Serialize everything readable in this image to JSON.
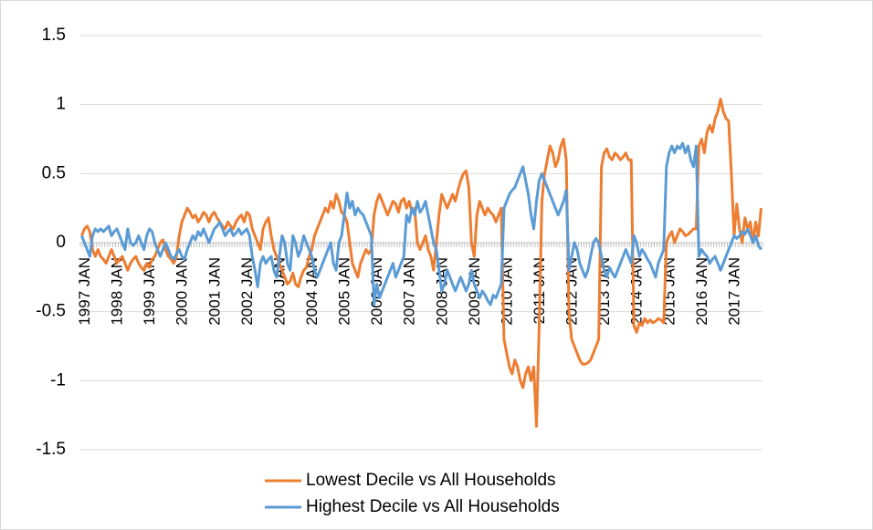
{
  "chart_data": {
    "type": "line",
    "categories": [
      "1997 JAN",
      null,
      null,
      null,
      null,
      null,
      null,
      null,
      null,
      null,
      null,
      null,
      "1998 JAN",
      null,
      null,
      null,
      null,
      null,
      null,
      null,
      null,
      null,
      null,
      null,
      "1999 JAN",
      null,
      null,
      null,
      null,
      null,
      null,
      null,
      null,
      null,
      null,
      null,
      "2000 JAN",
      null,
      null,
      null,
      null,
      null,
      null,
      null,
      null,
      null,
      null,
      null,
      "2001 JAN",
      null,
      null,
      null,
      null,
      null,
      null,
      null,
      null,
      null,
      null,
      null,
      "2002 JAN",
      null,
      null,
      null,
      null,
      null,
      null,
      null,
      null,
      null,
      null,
      null,
      "2003 JAN",
      null,
      null,
      null,
      null,
      null,
      null,
      null,
      null,
      null,
      null,
      null,
      "2004 JAN",
      null,
      null,
      null,
      null,
      null,
      null,
      null,
      null,
      null,
      null,
      null,
      "2005 JAN",
      null,
      null,
      null,
      null,
      null,
      null,
      null,
      null,
      null,
      null,
      null,
      "2006 JAN",
      null,
      null,
      null,
      null,
      null,
      null,
      null,
      null,
      null,
      null,
      null,
      "2007 JAN",
      null,
      null,
      null,
      null,
      null,
      null,
      null,
      null,
      null,
      null,
      null,
      "2008 JAN",
      null,
      null,
      null,
      null,
      null,
      null,
      null,
      null,
      null,
      null,
      null,
      "2009 JAN",
      null,
      null,
      null,
      null,
      null,
      null,
      null,
      null,
      null,
      null,
      null,
      "2010 JAN",
      null,
      null,
      null,
      null,
      null,
      null,
      null,
      null,
      null,
      null,
      null,
      "2011 JAN",
      null,
      null,
      null,
      null,
      null,
      null,
      null,
      null,
      null,
      null,
      null,
      "2012 JAN",
      null,
      null,
      null,
      null,
      null,
      null,
      null,
      null,
      null,
      null,
      null,
      "2013 JAN",
      null,
      null,
      null,
      null,
      null,
      null,
      null,
      null,
      null,
      null,
      null,
      "2014 JAN",
      null,
      null,
      null,
      null,
      null,
      null,
      null,
      null,
      null,
      null,
      null,
      "2015 JAN",
      null,
      null,
      null,
      null,
      null,
      null,
      null,
      null,
      null,
      null,
      null,
      "2016 JAN",
      null,
      null,
      null,
      null,
      null,
      null,
      null,
      null,
      null,
      null,
      null,
      "2017 JAN",
      null,
      null,
      null,
      null,
      null,
      null,
      null,
      null,
      null,
      null,
      null
    ],
    "series": [
      {
        "name": "Lowest Decile vs All Households",
        "color": "#ed7d31",
        "values": [
          0.05,
          0.1,
          0.12,
          0.08,
          -0.05,
          -0.1,
          -0.05,
          -0.1,
          -0.12,
          -0.15,
          -0.1,
          -0.05,
          -0.1,
          -0.15,
          -0.12,
          -0.1,
          -0.15,
          -0.2,
          -0.15,
          -0.12,
          -0.1,
          -0.15,
          -0.18,
          -0.2,
          -0.15,
          -0.18,
          -0.12,
          -0.1,
          -0.05,
          0,
          0.02,
          -0.05,
          -0.1,
          -0.12,
          -0.15,
          -0.1,
          0.05,
          0.15,
          0.2,
          0.25,
          0.22,
          0.18,
          0.2,
          0.15,
          0.18,
          0.22,
          0.2,
          0.15,
          0.2,
          0.22,
          0.18,
          0.15,
          0.12,
          0.1,
          0.15,
          0.12,
          0.1,
          0.15,
          0.18,
          0.2,
          0.15,
          0.22,
          0.2,
          0.1,
          0.05,
          0,
          -0.05,
          0.1,
          0.15,
          0.18,
          0.05,
          -0.05,
          -0.1,
          -0.15,
          -0.2,
          -0.25,
          -0.3,
          -0.28,
          -0.22,
          -0.3,
          -0.32,
          -0.25,
          -0.2,
          -0.18,
          -0.1,
          -0.05,
          0.05,
          0.1,
          0.15,
          0.2,
          0.25,
          0.22,
          0.3,
          0.25,
          0.35,
          0.3,
          0.22,
          0.2,
          0.15,
          0,
          -0.15,
          -0.2,
          -0.25,
          -0.15,
          -0.1,
          -0.05,
          -0.08,
          -0.05,
          0.2,
          0.3,
          0.35,
          0.3,
          0.25,
          0.2,
          0.25,
          0.3,
          0.28,
          0.22,
          0.3,
          0.32,
          0.25,
          0.3,
          0.22,
          0.25,
          0,
          -0.05,
          0,
          0.05,
          -0.05,
          -0.1,
          -0.2,
          0,
          0.2,
          0.35,
          0.3,
          0.25,
          0.3,
          0.35,
          0.3,
          0.38,
          0.45,
          0.5,
          0.52,
          0.4,
          0,
          -0.1,
          0.2,
          0.3,
          0.25,
          0.2,
          0.25,
          0.22,
          0.2,
          0.15,
          0.2,
          0.25,
          -0.7,
          -0.8,
          -0.9,
          -0.95,
          -0.85,
          -0.9,
          -1,
          -1.05,
          -0.95,
          -0.9,
          -1,
          -0.9,
          -1.33,
          -0.6,
          0.3,
          0.5,
          0.6,
          0.7,
          0.65,
          0.55,
          0.6,
          0.7,
          0.75,
          0.6,
          -0.5,
          -0.7,
          -0.75,
          -0.8,
          -0.85,
          -0.88,
          -0.88,
          -0.87,
          -0.85,
          -0.8,
          -0.75,
          -0.7,
          0.55,
          0.65,
          0.68,
          0.62,
          0.6,
          0.65,
          0.63,
          0.6,
          0.62,
          0.65,
          0.6,
          0.6,
          -0.6,
          -0.65,
          -0.58,
          -0.6,
          -0.55,
          -0.58,
          -0.56,
          -0.58,
          -0.57,
          -0.55,
          -0.56,
          -0.58,
          0,
          0.05,
          0.08,
          0,
          0.05,
          0.1,
          0.08,
          0.05,
          0.06,
          0.08,
          0.1,
          0.1,
          0.7,
          0.75,
          0.65,
          0.8,
          0.85,
          0.8,
          0.9,
          0.95,
          1.04,
          0.95,
          0.9,
          0.88,
          0.5,
          0.05,
          0.28,
          0.1,
          0,
          0.18,
          0.1,
          0.15,
          0,
          0.15,
          0.05,
          0.25
        ]
      },
      {
        "name": "Highest Decile vs All Households",
        "color": "#5b9bd5",
        "values": [
          0.05,
          0,
          -0.05,
          -0.1,
          0.05,
          0.1,
          0.08,
          0.1,
          0.08,
          0.1,
          0.12,
          0.05,
          0.08,
          0.1,
          0.05,
          0,
          -0.05,
          0.1,
          0,
          -0.02,
          0,
          0.05,
          0,
          -0.05,
          0.05,
          0.1,
          0.08,
          0,
          -0.05,
          -0.1,
          -0.05,
          0,
          -0.05,
          -0.1,
          -0.12,
          -0.08,
          -0.05,
          -0.1,
          -0.12,
          -0.05,
          0,
          0.05,
          0.02,
          0.08,
          0.05,
          0.1,
          0.05,
          0,
          0.05,
          0.1,
          0.12,
          0.15,
          0.1,
          0.05,
          0.08,
          0.1,
          0.05,
          0.07,
          0.1,
          0.06,
          0.08,
          0.1,
          0.05,
          -0.1,
          -0.2,
          -0.32,
          -0.15,
          -0.1,
          -0.15,
          -0.12,
          -0.1,
          -0.2,
          -0.25,
          -0.1,
          0.05,
          0,
          -0.15,
          -0.2,
          0.05,
          0,
          -0.1,
          -0.05,
          0.05,
          0,
          -0.05,
          -0.1,
          -0.2,
          -0.25,
          -0.2,
          -0.15,
          -0.1,
          -0.05,
          0,
          -0.15,
          -0.2,
          0,
          0.05,
          0.2,
          0.36,
          0.25,
          0.3,
          0.2,
          0.25,
          0.22,
          0.2,
          0.15,
          0.1,
          0.05,
          -0.45,
          -0.3,
          -0.4,
          -0.35,
          -0.3,
          -0.25,
          -0.2,
          -0.15,
          -0.25,
          -0.2,
          -0.15,
          -0.1,
          0.2,
          0.15,
          0.25,
          0.2,
          0.3,
          0.22,
          0.25,
          0.3,
          0.2,
          0.1,
          0,
          -0.05,
          -0.2,
          -0.35,
          -0.3,
          -0.2,
          -0.25,
          -0.3,
          -0.35,
          -0.3,
          -0.25,
          -0.3,
          -0.35,
          -0.3,
          -0.2,
          -0.3,
          -0.35,
          -0.4,
          -0.35,
          -0.38,
          -0.42,
          -0.45,
          -0.38,
          -0.4,
          -0.35,
          -0.3,
          0.25,
          0.3,
          0.35,
          0.38,
          0.4,
          0.45,
          0.5,
          0.55,
          0.45,
          0.35,
          0.2,
          0.1,
          0.3,
          0.45,
          0.5,
          0.45,
          0.4,
          0.35,
          0.3,
          0.25,
          0.2,
          0.25,
          0.3,
          0.38,
          -0.2,
          -0.1,
          0,
          -0.05,
          -0.15,
          -0.2,
          -0.25,
          -0.2,
          -0.1,
          0,
          0.03,
          0,
          -0.1,
          -0.2,
          -0.25,
          -0.18,
          -0.22,
          -0.25,
          -0.2,
          -0.15,
          -0.1,
          -0.05,
          -0.1,
          -0.15,
          0.05,
          0,
          -0.1,
          -0.05,
          -0.08,
          -0.12,
          -0.15,
          -0.2,
          -0.25,
          -0.15,
          -0.1,
          -0.05,
          0.55,
          0.65,
          0.7,
          0.65,
          0.7,
          0.68,
          0.72,
          0.65,
          0.7,
          0.6,
          0.55,
          0.7,
          -0.1,
          -0.05,
          -0.08,
          -0.1,
          -0.15,
          -0.12,
          -0.1,
          -0.15,
          -0.2,
          -0.15,
          -0.1,
          -0.05,
          0,
          0.05,
          0.03,
          0.05,
          0.08,
          0.06,
          0.1,
          0.05,
          0,
          0.05,
          -0.02,
          -0.05
        ]
      }
    ],
    "ylim": [
      -1.5,
      1.5
    ],
    "yticks": [
      -1.5,
      -1,
      -0.5,
      0,
      0.5,
      1,
      1.5
    ],
    "grid": true,
    "legend": "bottom"
  }
}
